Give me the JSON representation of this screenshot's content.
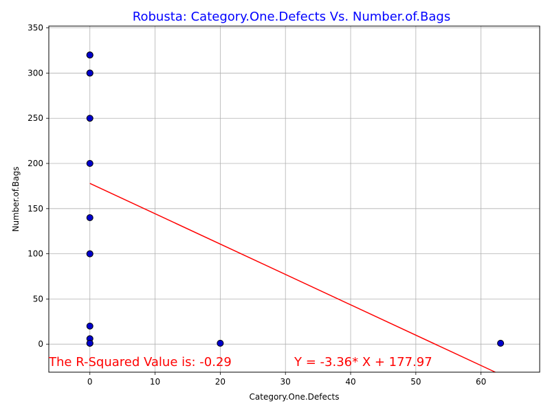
{
  "chart_data": {
    "type": "scatter",
    "title": "Robusta: Category.One.Defects Vs. Number.of.Bags",
    "xlabel": "Category.One.Defects",
    "ylabel": "Number.of.Bags",
    "xlim": [
      -6.3,
      69
    ],
    "ylim": [
      -31,
      352
    ],
    "xticks": [
      0,
      10,
      20,
      30,
      40,
      50,
      60
    ],
    "yticks": [
      0,
      50,
      100,
      150,
      200,
      250,
      300,
      350
    ],
    "grid": true,
    "points": [
      {
        "x": 0,
        "y": 320
      },
      {
        "x": 0,
        "y": 320
      },
      {
        "x": 0,
        "y": 320
      },
      {
        "x": 0,
        "y": 300
      },
      {
        "x": 0,
        "y": 300
      },
      {
        "x": 0,
        "y": 250
      },
      {
        "x": 0,
        "y": 200
      },
      {
        "x": 0,
        "y": 140
      },
      {
        "x": 0,
        "y": 100
      },
      {
        "x": 0,
        "y": 100
      },
      {
        "x": 0,
        "y": 20
      },
      {
        "x": 0,
        "y": 6
      },
      {
        "x": 0,
        "y": 1
      },
      {
        "x": 0,
        "y": 1
      },
      {
        "x": 20,
        "y": 1
      },
      {
        "x": 63,
        "y": 1
      }
    ],
    "regression": {
      "slope": -3.36,
      "intercept": 177.97,
      "x_range": [
        0,
        63
      ]
    },
    "annotations": {
      "r_squared": "The R-Squared Value is: -0.29",
      "equation": "Y = -3.36* X + 177.97"
    },
    "colors": {
      "title": "#0000ff",
      "point_fill": "#0000cc",
      "point_edge": "#000000",
      "line": "#ff0000",
      "annotation": "#ff0000",
      "grid": "#b0b0b0"
    }
  }
}
